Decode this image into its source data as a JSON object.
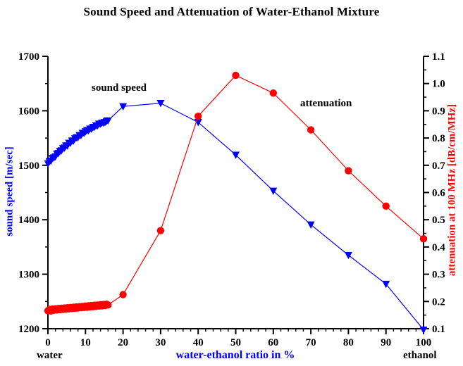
{
  "title": "Sound Speed and Attenuation of Water-Ethanol Mixture",
  "labels": {
    "y_left": "sound speed [m/sec]",
    "y_right": "attenuation at 100 MHz [dB/cm/MHz]",
    "x": "water-ethanol ratio in %",
    "x_left_corner": "water",
    "x_right_corner": "ethanol",
    "annotation_speed": "sound speed",
    "annotation_attenuation": "attenuation"
  },
  "colors": {
    "speed": "#0000ff",
    "attenuation": "#ff0000",
    "axis": "#000000",
    "tick_text": "#000000"
  },
  "chart_data": {
    "type": "line",
    "title": "Sound Speed and Attenuation of Water-Ethanol Mixture",
    "grid": false,
    "legend": "in-plot text annotations",
    "x_axis": {
      "label": "water-ethanol ratio in %",
      "min": 0,
      "max": 100,
      "major_ticks": [
        0,
        10,
        20,
        30,
        40,
        50,
        60,
        70,
        80,
        90,
        100
      ],
      "minor_step": 2,
      "left_end_label": "water",
      "right_end_label": "ethanol"
    },
    "y_left_axis": {
      "label": "sound speed [m/sec]",
      "min": 1200,
      "max": 1700,
      "major_ticks": [
        1200,
        1300,
        1400,
        1500,
        1600,
        1700
      ],
      "minor_step": 50,
      "decimals": 0
    },
    "y_right_axis": {
      "label": "attenuation at 100 MHz [dB/cm/MHz]",
      "min": 0.1,
      "max": 1.1,
      "major_ticks": [
        0.1,
        0.2,
        0.3,
        0.4,
        0.5,
        0.6,
        0.7,
        0.8,
        0.9,
        1.0,
        1.1
      ],
      "minor_step": 0.05,
      "decimals": 1
    },
    "series": [
      {
        "name": "sound speed",
        "axis": "left",
        "color": "#0000ff",
        "marker": "triangle-down",
        "x": [
          0,
          0.4,
          0.8,
          1.2,
          1.6,
          2,
          2.4,
          2.8,
          3.2,
          3.6,
          4,
          4.4,
          4.8,
          5.2,
          5.6,
          6,
          6.4,
          6.8,
          7.2,
          7.6,
          8,
          8.4,
          8.8,
          9.2,
          9.6,
          10,
          10.4,
          10.8,
          11.2,
          11.6,
          12,
          12.4,
          12.8,
          13.2,
          13.6,
          14,
          14.4,
          14.8,
          15.2,
          15.6,
          16,
          20,
          30,
          40,
          50,
          60,
          70,
          80,
          90,
          100
        ],
        "y": [
          1503,
          1507,
          1508,
          1513,
          1514,
          1516,
          1521,
          1522,
          1526,
          1527,
          1531,
          1532,
          1536,
          1536,
          1541,
          1541,
          1545,
          1545,
          1549,
          1551,
          1551,
          1555,
          1555,
          1559,
          1559,
          1562,
          1564,
          1564,
          1567,
          1567,
          1570,
          1570,
          1573,
          1573,
          1576,
          1576,
          1578,
          1578,
          1579,
          1581,
          1582,
          1608,
          1614,
          1579,
          1519,
          1453,
          1391,
          1335,
          1282,
          1198
        ]
      },
      {
        "name": "attenuation at 100 MHz",
        "axis": "right",
        "color": "#ff0000",
        "marker": "circle",
        "x": [
          0,
          0.4,
          0.8,
          1.2,
          1.6,
          2,
          2.4,
          2.8,
          3.2,
          3.6,
          4,
          4.4,
          4.8,
          5.2,
          5.6,
          6,
          6.4,
          6.8,
          7.2,
          7.6,
          8,
          8.4,
          8.8,
          9.2,
          9.6,
          10,
          10.4,
          10.8,
          11.2,
          11.6,
          12,
          12.4,
          12.8,
          13.2,
          13.6,
          14,
          14.4,
          14.8,
          15.2,
          15.6,
          16,
          20,
          30,
          40,
          50,
          60,
          70,
          80,
          90,
          100
        ],
        "y": [
          0.166,
          0.171,
          0.165,
          0.172,
          0.168,
          0.173,
          0.169,
          0.174,
          0.17,
          0.175,
          0.171,
          0.176,
          0.172,
          0.177,
          0.173,
          0.178,
          0.174,
          0.179,
          0.175,
          0.18,
          0.176,
          0.181,
          0.177,
          0.182,
          0.178,
          0.183,
          0.179,
          0.184,
          0.18,
          0.185,
          0.181,
          0.186,
          0.182,
          0.187,
          0.183,
          0.188,
          0.184,
          0.189,
          0.185,
          0.19,
          0.187,
          0.225,
          0.46,
          0.88,
          1.03,
          0.965,
          0.83,
          0.68,
          0.55,
          0.43
        ]
      }
    ]
  }
}
